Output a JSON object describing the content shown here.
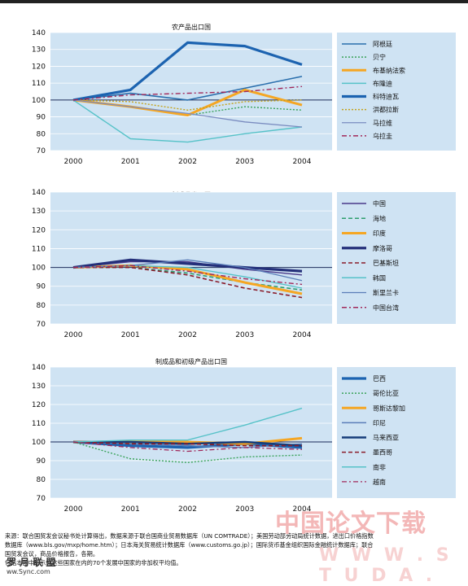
{
  "chart_data": [
    {
      "type": "line",
      "title": "农产品出口国",
      "x": [
        "2000",
        "2001",
        "2002",
        "2003",
        "2004"
      ],
      "ylim": [
        70,
        140
      ],
      "yticks": [
        70,
        80,
        90,
        100,
        110,
        120,
        130,
        140
      ],
      "series": [
        {
          "name": "阿根廷",
          "color": "#2a6fad",
          "style": "solid",
          "width": 1.6,
          "values": [
            100,
            104,
            100,
            107,
            114
          ]
        },
        {
          "name": "贝宁",
          "color": "#3aa35a",
          "style": "dot",
          "width": 1.4,
          "values": [
            100,
            96,
            91,
            96,
            94
          ]
        },
        {
          "name": "布基纳法索",
          "color": "#f5a623",
          "style": "solid",
          "width": 3,
          "values": [
            100,
            96,
            91,
            106,
            97
          ]
        },
        {
          "name": "布隆迪",
          "color": "#56c2c8",
          "style": "solid",
          "width": 1.4,
          "values": [
            100,
            77,
            75,
            80,
            84
          ]
        },
        {
          "name": "科特迪瓦",
          "color": "#1c63b0",
          "style": "solid",
          "width": 3.2,
          "values": [
            100,
            106,
            134,
            132,
            121
          ]
        },
        {
          "name": "洪都拉斯",
          "color": "#c4a21b",
          "style": "dot",
          "width": 1.4,
          "values": [
            100,
            99,
            94,
            99,
            100
          ]
        },
        {
          "name": "马拉维",
          "color": "#7a8cc0",
          "style": "solid",
          "width": 1.3,
          "values": [
            100,
            96,
            92,
            87,
            84
          ]
        },
        {
          "name": "乌拉圭",
          "color": "#a0285a",
          "style": "dashdot",
          "width": 1.4,
          "values": [
            100,
            103,
            104,
            105,
            108
          ]
        }
      ]
    },
    {
      "type": "line",
      "title": "制成品出口国",
      "x": [
        "2000",
        "2001",
        "2002",
        "2003",
        "2004"
      ],
      "ylim": [
        70,
        140
      ],
      "yticks": [
        70,
        80,
        90,
        100,
        110,
        120,
        130,
        140
      ],
      "series": [
        {
          "name": "中国",
          "color": "#4a3a8a",
          "style": "solid",
          "width": 1.4,
          "values": [
            100,
            103,
            103,
            99,
            96
          ]
        },
        {
          "name": "海地",
          "color": "#2e9e6e",
          "style": "dash",
          "width": 1.6,
          "values": [
            100,
            100,
            97,
            92,
            88
          ]
        },
        {
          "name": "印度",
          "color": "#f5a623",
          "style": "solid",
          "width": 3,
          "values": [
            100,
            101,
            99,
            92,
            86
          ]
        },
        {
          "name": "摩洛哥",
          "color": "#24307a",
          "style": "solid",
          "width": 3.2,
          "values": [
            100,
            104,
            102,
            100,
            98
          ]
        },
        {
          "name": "巴基斯坦",
          "color": "#8a1c2a",
          "style": "dash",
          "width": 1.6,
          "values": [
            100,
            100,
            96,
            89,
            84
          ]
        },
        {
          "name": "韩国",
          "color": "#56c2c8",
          "style": "solid",
          "width": 1.4,
          "values": [
            100,
            101,
            100,
            95,
            89
          ]
        },
        {
          "name": "斯里兰卡",
          "color": "#5a7db8",
          "style": "solid",
          "width": 1.3,
          "values": [
            100,
            101,
            104,
            100,
            93
          ]
        },
        {
          "name": "中国台湾",
          "color": "#a0285a",
          "style": "dashdot",
          "width": 1.4,
          "values": [
            100,
            101,
            98,
            94,
            91
          ]
        }
      ]
    },
    {
      "type": "line",
      "title": "制成品和初级产品出口国",
      "x": [
        "2000",
        "2001",
        "2002",
        "2003",
        "2004"
      ],
      "ylim": [
        70,
        140
      ],
      "yticks": [
        70,
        80,
        90,
        100,
        110,
        120,
        130,
        140
      ],
      "series": [
        {
          "name": "巴西",
          "color": "#1c63b0",
          "style": "solid",
          "width": 3.2,
          "values": [
            100,
            98,
            97,
            99,
            97
          ]
        },
        {
          "name": "哥伦比亚",
          "color": "#3aa35a",
          "style": "dot",
          "width": 1.4,
          "values": [
            100,
            91,
            89,
            92,
            93
          ]
        },
        {
          "name": "哥斯达黎加",
          "color": "#f5a623",
          "style": "solid",
          "width": 3,
          "values": [
            100,
            100,
            100,
            99,
            102
          ]
        },
        {
          "name": "印尼",
          "color": "#5a7db8",
          "style": "solid",
          "width": 1.4,
          "values": [
            100,
            99,
            98,
            97,
            99
          ]
        },
        {
          "name": "马来西亚",
          "color": "#163d7a",
          "style": "solid",
          "width": 2.6,
          "values": [
            100,
            100,
            99,
            100,
            98
          ]
        },
        {
          "name": "墨西哥",
          "color": "#8a1c2a",
          "style": "dash",
          "width": 1.6,
          "values": [
            100,
            99,
            99,
            98,
            98
          ]
        },
        {
          "name": "南非",
          "color": "#56c2c8",
          "style": "solid",
          "width": 1.4,
          "values": [
            100,
            101,
            101,
            109,
            118
          ]
        },
        {
          "name": "越南",
          "color": "#a0285a",
          "style": "dashdot",
          "width": 1.3,
          "values": [
            100,
            97,
            95,
            97,
            96
          ]
        }
      ]
    }
  ],
  "source": {
    "line1": "来源：联合国贸发会议秘书处计算得出，数据来源于联合国商业贸易数据库（UN COMTRADE）；美国劳动部劳动局统计数据，进出口价格指数",
    "line2": "数据库（www.bls.gov/mxp/home.htm）；日本海关贸易统计数据库（www.customs.go.jp）；国际货币基金组织国际金融统计数据库；联合",
    "line3": "国贸发会议，商品价格报告，各期。",
    "line4": "包括本图中所示的这些国家在内的70个发展中国家的非加权平均值。"
  },
  "watermark": {
    "cn": "中国论文下载",
    "url": "W W W . S T U D A .",
    "logo": "罗 月 联 盟",
    "site": "ww.Sync.com"
  }
}
